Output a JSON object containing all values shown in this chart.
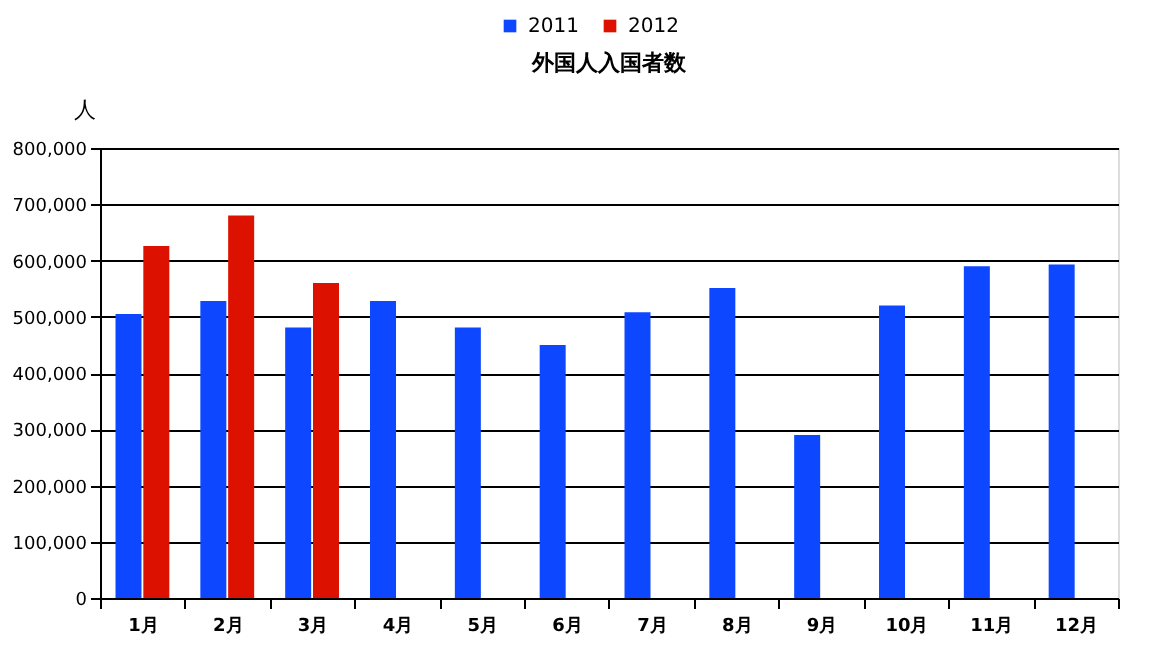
{
  "chart_data": {
    "type": "bar",
    "title": "外国人入国者数",
    "ylabel": "人",
    "categories": [
      "1月",
      "2月",
      "3月",
      "4月",
      "5月",
      "6月",
      "7月",
      "8月",
      "9月",
      "10月",
      "11月",
      "12月"
    ],
    "series": [
      {
        "name": "2011",
        "color": "#0d47ff",
        "values": [
          505000,
          528000,
          481000,
          528000,
          481000,
          450000,
          508000,
          551000,
          290000,
          520000,
          590000,
          593000
        ]
      },
      {
        "name": "2012",
        "color": "#dd1100",
        "values": [
          626000,
          680000,
          560000,
          null,
          null,
          null,
          null,
          null,
          null,
          null,
          null,
          null
        ]
      }
    ],
    "ylim": [
      0,
      800000
    ],
    "yticks": [
      0,
      {
        "value": 100000,
        "label": "100,000"
      },
      {
        "value": 200000,
        "label": "200,000"
      },
      {
        "value": 300000,
        "label": "300,000"
      },
      {
        "value": 400000,
        "label": "400,000"
      },
      {
        "value": 500000,
        "label": "500,000"
      },
      {
        "value": 600000,
        "label": "600,000"
      },
      {
        "value": 700000,
        "label": "700,000"
      },
      {
        "value": 800000,
        "label": "800,000"
      }
    ],
    "grid": "y",
    "legend": "top"
  }
}
